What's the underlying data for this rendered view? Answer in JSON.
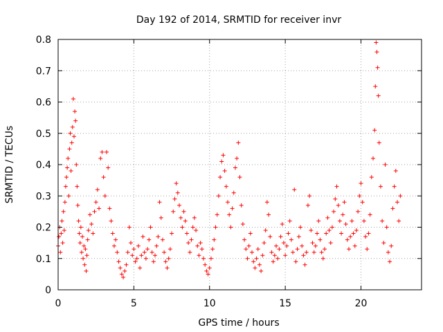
{
  "chart_data": {
    "type": "scatter",
    "title": "Day 192 of 2014, SRMTID for receiver invr",
    "xlabel": "GPS time / hours",
    "ylabel": "SRMTID / TECUs",
    "xlim": [
      0,
      24
    ],
    "ylim": [
      0,
      0.8
    ],
    "xticks": [
      0,
      5,
      10,
      15,
      20
    ],
    "yticks": [
      0,
      0.1,
      0.2,
      0.3,
      0.4,
      0.5,
      0.6,
      0.7,
      0.8
    ],
    "grid": true,
    "marker": "+",
    "color": "#ff0000",
    "series": [
      {
        "name": "SRMTID",
        "points": [
          [
            0.0,
            0.14
          ],
          [
            0.05,
            0.17
          ],
          [
            0.1,
            0.2
          ],
          [
            0.15,
            0.12
          ],
          [
            0.2,
            0.18
          ],
          [
            0.25,
            0.22
          ],
          [
            0.3,
            0.15
          ],
          [
            0.35,
            0.25
          ],
          [
            0.4,
            0.19
          ],
          [
            0.45,
            0.28
          ],
          [
            0.5,
            0.33
          ],
          [
            0.55,
            0.36
          ],
          [
            0.6,
            0.39
          ],
          [
            0.65,
            0.42
          ],
          [
            0.7,
            0.3
          ],
          [
            0.75,
            0.45
          ],
          [
            0.8,
            0.5
          ],
          [
            0.85,
            0.38
          ],
          [
            0.9,
            0.47
          ],
          [
            0.95,
            0.52
          ],
          [
            1.0,
            0.61
          ],
          [
            1.05,
            0.49
          ],
          [
            1.1,
            0.57
          ],
          [
            1.15,
            0.54
          ],
          [
            1.2,
            0.4
          ],
          [
            1.25,
            0.33
          ],
          [
            1.3,
            0.27
          ],
          [
            1.35,
            0.22
          ],
          [
            1.4,
            0.18
          ],
          [
            1.45,
            0.15
          ],
          [
            1.5,
            0.2
          ],
          [
            1.55,
            0.12
          ],
          [
            1.6,
            0.17
          ],
          [
            1.65,
            0.1
          ],
          [
            1.7,
            0.14
          ],
          [
            1.75,
            0.08
          ],
          [
            1.8,
            0.13
          ],
          [
            1.85,
            0.06
          ],
          [
            1.9,
            0.11
          ],
          [
            1.95,
            0.16
          ],
          [
            2.0,
            0.19
          ],
          [
            2.1,
            0.24
          ],
          [
            2.2,
            0.21
          ],
          [
            2.3,
            0.18
          ],
          [
            2.4,
            0.25
          ],
          [
            2.5,
            0.28
          ],
          [
            2.6,
            0.32
          ],
          [
            2.7,
            0.26
          ],
          [
            2.8,
            0.42
          ],
          [
            2.9,
            0.44
          ],
          [
            3.0,
            0.36
          ],
          [
            3.1,
            0.3
          ],
          [
            3.2,
            0.44
          ],
          [
            3.3,
            0.39
          ],
          [
            3.4,
            0.26
          ],
          [
            3.5,
            0.22
          ],
          [
            3.6,
            0.18
          ],
          [
            3.7,
            0.14
          ],
          [
            3.8,
            0.16
          ],
          [
            3.9,
            0.12
          ],
          [
            4.0,
            0.09
          ],
          [
            4.1,
            0.07
          ],
          [
            4.2,
            0.05
          ],
          [
            4.3,
            0.04
          ],
          [
            4.4,
            0.06
          ],
          [
            4.5,
            0.08
          ],
          [
            4.6,
            0.12
          ],
          [
            4.7,
            0.2
          ],
          [
            4.8,
            0.15
          ],
          [
            4.9,
            0.11
          ],
          [
            5.0,
            0.13
          ],
          [
            5.1,
            0.09
          ],
          [
            5.2,
            0.1
          ],
          [
            5.3,
            0.14
          ],
          [
            5.4,
            0.07
          ],
          [
            5.5,
            0.11
          ],
          [
            5.6,
            0.17
          ],
          [
            5.7,
            0.12
          ],
          [
            5.8,
            0.1
          ],
          [
            5.9,
            0.13
          ],
          [
            6.0,
            0.16
          ],
          [
            6.1,
            0.2
          ],
          [
            6.2,
            0.12
          ],
          [
            6.3,
            0.09
          ],
          [
            6.4,
            0.11
          ],
          [
            6.5,
            0.14
          ],
          [
            6.6,
            0.17
          ],
          [
            6.7,
            0.28
          ],
          [
            6.8,
            0.23
          ],
          [
            6.9,
            0.16
          ],
          [
            7.0,
            0.12
          ],
          [
            7.1,
            0.09
          ],
          [
            7.2,
            0.07
          ],
          [
            7.3,
            0.1
          ],
          [
            7.4,
            0.13
          ],
          [
            7.5,
            0.18
          ],
          [
            7.6,
            0.25
          ],
          [
            7.7,
            0.29
          ],
          [
            7.8,
            0.34
          ],
          [
            7.9,
            0.31
          ],
          [
            8.0,
            0.27
          ],
          [
            8.1,
            0.23
          ],
          [
            8.2,
            0.2
          ],
          [
            8.3,
            0.25
          ],
          [
            8.4,
            0.22
          ],
          [
            8.5,
            0.18
          ],
          [
            8.6,
            0.15
          ],
          [
            8.7,
            0.12
          ],
          [
            8.8,
            0.16
          ],
          [
            8.9,
            0.2
          ],
          [
            9.0,
            0.23
          ],
          [
            9.1,
            0.19
          ],
          [
            9.2,
            0.14
          ],
          [
            9.3,
            0.11
          ],
          [
            9.4,
            0.15
          ],
          [
            9.5,
            0.13
          ],
          [
            9.6,
            0.1
          ],
          [
            9.7,
            0.08
          ],
          [
            9.8,
            0.06
          ],
          [
            9.9,
            0.05
          ],
          [
            10.0,
            0.07
          ],
          [
            10.1,
            0.1
          ],
          [
            10.2,
            0.13
          ],
          [
            10.3,
            0.16
          ],
          [
            10.4,
            0.2
          ],
          [
            10.5,
            0.24
          ],
          [
            10.6,
            0.3
          ],
          [
            10.7,
            0.36
          ],
          [
            10.8,
            0.41
          ],
          [
            10.9,
            0.43
          ],
          [
            11.0,
            0.38
          ],
          [
            11.1,
            0.33
          ],
          [
            11.2,
            0.28
          ],
          [
            11.3,
            0.24
          ],
          [
            11.4,
            0.2
          ],
          [
            11.5,
            0.26
          ],
          [
            11.6,
            0.31
          ],
          [
            11.7,
            0.39
          ],
          [
            11.8,
            0.42
          ],
          [
            11.9,
            0.47
          ],
          [
            12.0,
            0.36
          ],
          [
            12.1,
            0.27
          ],
          [
            12.2,
            0.21
          ],
          [
            12.3,
            0.16
          ],
          [
            12.4,
            0.13
          ],
          [
            12.5,
            0.1
          ],
          [
            12.6,
            0.14
          ],
          [
            12.7,
            0.18
          ],
          [
            12.8,
            0.12
          ],
          [
            12.9,
            0.09
          ],
          [
            13.0,
            0.07
          ],
          [
            13.1,
            0.1
          ],
          [
            13.2,
            0.13
          ],
          [
            13.3,
            0.08
          ],
          [
            13.4,
            0.06
          ],
          [
            13.5,
            0.11
          ],
          [
            13.6,
            0.15
          ],
          [
            13.7,
            0.19
          ],
          [
            13.8,
            0.28
          ],
          [
            13.9,
            0.24
          ],
          [
            14.0,
            0.17
          ],
          [
            14.1,
            0.12
          ],
          [
            14.2,
            0.09
          ],
          [
            14.3,
            0.11
          ],
          [
            14.4,
            0.14
          ],
          [
            14.5,
            0.1
          ],
          [
            14.6,
            0.13
          ],
          [
            14.7,
            0.17
          ],
          [
            14.8,
            0.21
          ],
          [
            14.9,
            0.15
          ],
          [
            15.0,
            0.11
          ],
          [
            15.1,
            0.14
          ],
          [
            15.2,
            0.18
          ],
          [
            15.3,
            0.22
          ],
          [
            15.4,
            0.16
          ],
          [
            15.5,
            0.12
          ],
          [
            15.6,
            0.32
          ],
          [
            15.7,
            0.09
          ],
          [
            15.8,
            0.13
          ],
          [
            15.9,
            0.17
          ],
          [
            16.0,
            0.2
          ],
          [
            16.1,
            0.14
          ],
          [
            16.2,
            0.11
          ],
          [
            16.3,
            0.08
          ],
          [
            16.4,
            0.12
          ],
          [
            16.5,
            0.27
          ],
          [
            16.6,
            0.3
          ],
          [
            16.7,
            0.19
          ],
          [
            16.8,
            0.15
          ],
          [
            16.9,
            0.12
          ],
          [
            17.0,
            0.14
          ],
          [
            17.1,
            0.18
          ],
          [
            17.2,
            0.22
          ],
          [
            17.3,
            0.16
          ],
          [
            17.4,
            0.12
          ],
          [
            17.5,
            0.1
          ],
          [
            17.6,
            0.13
          ],
          [
            17.7,
            0.18
          ],
          [
            17.8,
            0.23
          ],
          [
            17.9,
            0.19
          ],
          [
            18.0,
            0.15
          ],
          [
            18.1,
            0.2
          ],
          [
            18.2,
            0.25
          ],
          [
            18.3,
            0.29
          ],
          [
            18.4,
            0.33
          ],
          [
            18.5,
            0.27
          ],
          [
            18.6,
            0.22
          ],
          [
            18.7,
            0.18
          ],
          [
            18.8,
            0.24
          ],
          [
            18.9,
            0.28
          ],
          [
            19.0,
            0.21
          ],
          [
            19.1,
            0.16
          ],
          [
            19.2,
            0.13
          ],
          [
            19.3,
            0.17
          ],
          [
            19.4,
            0.22
          ],
          [
            19.5,
            0.18
          ],
          [
            19.6,
            0.14
          ],
          [
            19.7,
            0.19
          ],
          [
            19.8,
            0.25
          ],
          [
            19.9,
            0.3
          ],
          [
            20.0,
            0.34
          ],
          [
            20.1,
            0.28
          ],
          [
            20.2,
            0.22
          ],
          [
            20.3,
            0.17
          ],
          [
            20.4,
            0.13
          ],
          [
            20.5,
            0.18
          ],
          [
            20.6,
            0.24
          ],
          [
            20.7,
            0.36
          ],
          [
            20.8,
            0.42
          ],
          [
            20.9,
            0.51
          ],
          [
            20.95,
            0.65
          ],
          [
            21.0,
            0.79
          ],
          [
            21.05,
            0.76
          ],
          [
            21.1,
            0.71
          ],
          [
            21.15,
            0.62
          ],
          [
            21.2,
            0.47
          ],
          [
            21.3,
            0.33
          ],
          [
            21.4,
            0.22
          ],
          [
            21.5,
            0.15
          ],
          [
            21.6,
            0.4
          ],
          [
            21.7,
            0.2
          ],
          [
            21.8,
            0.12
          ],
          [
            21.9,
            0.09
          ],
          [
            22.0,
            0.14
          ],
          [
            22.1,
            0.26
          ],
          [
            22.2,
            0.33
          ],
          [
            22.3,
            0.38
          ],
          [
            22.4,
            0.28
          ],
          [
            22.5,
            0.22
          ],
          [
            22.6,
            0.3
          ]
        ]
      }
    ]
  }
}
